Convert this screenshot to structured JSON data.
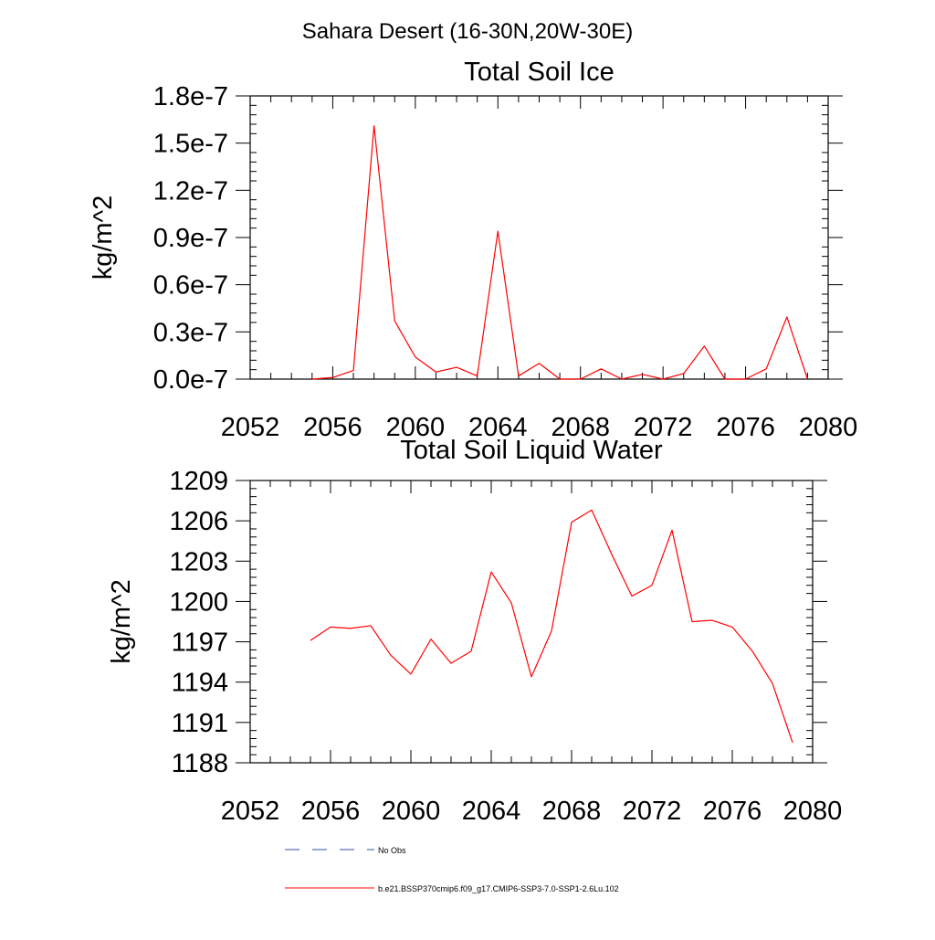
{
  "figure_title": "Sahara Desert (16-30N,20W-30E)",
  "legend": {
    "items": [
      {
        "label": "No Obs",
        "style": "dashed",
        "color": "#3a4fa0"
      },
      {
        "label": "b.e21.BSSP370cmip6.f09_g17.CMIP6-SSP3-7.0-SSP1-2.6Lu.102",
        "style": "solid",
        "color": "#ff0000"
      }
    ]
  },
  "chart_data": [
    {
      "type": "line",
      "title": "Total Soil Ice",
      "xlabel": "",
      "ylabel": "kg/m^2",
      "xlim": [
        2052,
        2080
      ],
      "ylim": [
        0.0,
        1.8e-07
      ],
      "x_ticks": [
        2052,
        2056,
        2060,
        2064,
        2068,
        2072,
        2076,
        2080
      ],
      "x_tick_labels": [
        "2052",
        "2056",
        "2060",
        "2064",
        "2068",
        "2072",
        "2076",
        "2080"
      ],
      "y_ticks": [
        0.0,
        3e-08,
        6e-08,
        9e-08,
        1.2e-07,
        1.5e-07,
        1.8e-07
      ],
      "y_tick_labels": [
        "0.0e-7",
        "0.3e-7",
        "0.6e-7",
        "0.9e-7",
        "1.2e-7",
        "1.5e-7",
        "1.8e-7"
      ],
      "grid": false,
      "series": [
        {
          "color": "#ff0000",
          "x": [
            2055,
            2056,
            2057,
            2058,
            2059,
            2060,
            2061,
            2062,
            2063,
            2064,
            2065,
            2066,
            2067,
            2068,
            2069,
            2070,
            2071,
            2072,
            2073,
            2074,
            2075,
            2076,
            2077,
            2078,
            2079
          ],
          "values": [
            0.0,
            1e-09,
            5.5e-09,
            1.61e-07,
            3.7e-08,
            1.4e-08,
            4.5e-09,
            7.5e-09,
            2e-09,
            9.4e-08,
            2e-09,
            1e-08,
            0.0,
            0.0,
            6.5e-09,
            0.0,
            3e-09,
            0.0,
            3.5e-09,
            2.1e-08,
            0.0,
            0.0,
            6.5e-09,
            3.95e-08,
            0.0
          ]
        }
      ]
    },
    {
      "type": "line",
      "title": "Total Soil Liquid Water",
      "xlabel": "",
      "ylabel": "kg/m^2",
      "xlim": [
        2052,
        2080
      ],
      "ylim": [
        1188,
        1209
      ],
      "x_ticks": [
        2052,
        2056,
        2060,
        2064,
        2068,
        2072,
        2076,
        2080
      ],
      "x_tick_labels": [
        "2052",
        "2056",
        "2060",
        "2064",
        "2068",
        "2072",
        "2076",
        "2080"
      ],
      "y_ticks": [
        1188,
        1191,
        1194,
        1197,
        1200,
        1203,
        1206,
        1209
      ],
      "y_tick_labels": [
        "1188",
        "1191",
        "1194",
        "1197",
        "1200",
        "1203",
        "1206",
        "1209"
      ],
      "grid": false,
      "series": [
        {
          "color": "#ff0000",
          "x": [
            2055,
            2056,
            2057,
            2058,
            2059,
            2060,
            2061,
            2062,
            2063,
            2064,
            2065,
            2066,
            2067,
            2068,
            2069,
            2070,
            2071,
            2072,
            2073,
            2074,
            2075,
            2076,
            2077,
            2078,
            2079
          ],
          "values": [
            1197.1,
            1198.1,
            1198.0,
            1198.2,
            1196.0,
            1194.6,
            1197.2,
            1195.4,
            1196.3,
            1202.2,
            1199.9,
            1194.4,
            1197.8,
            1205.9,
            1206.8,
            1203.5,
            1200.4,
            1201.2,
            1205.3,
            1198.5,
            1198.6,
            1198.1,
            1196.3,
            1193.9,
            1189.5
          ]
        }
      ]
    }
  ]
}
